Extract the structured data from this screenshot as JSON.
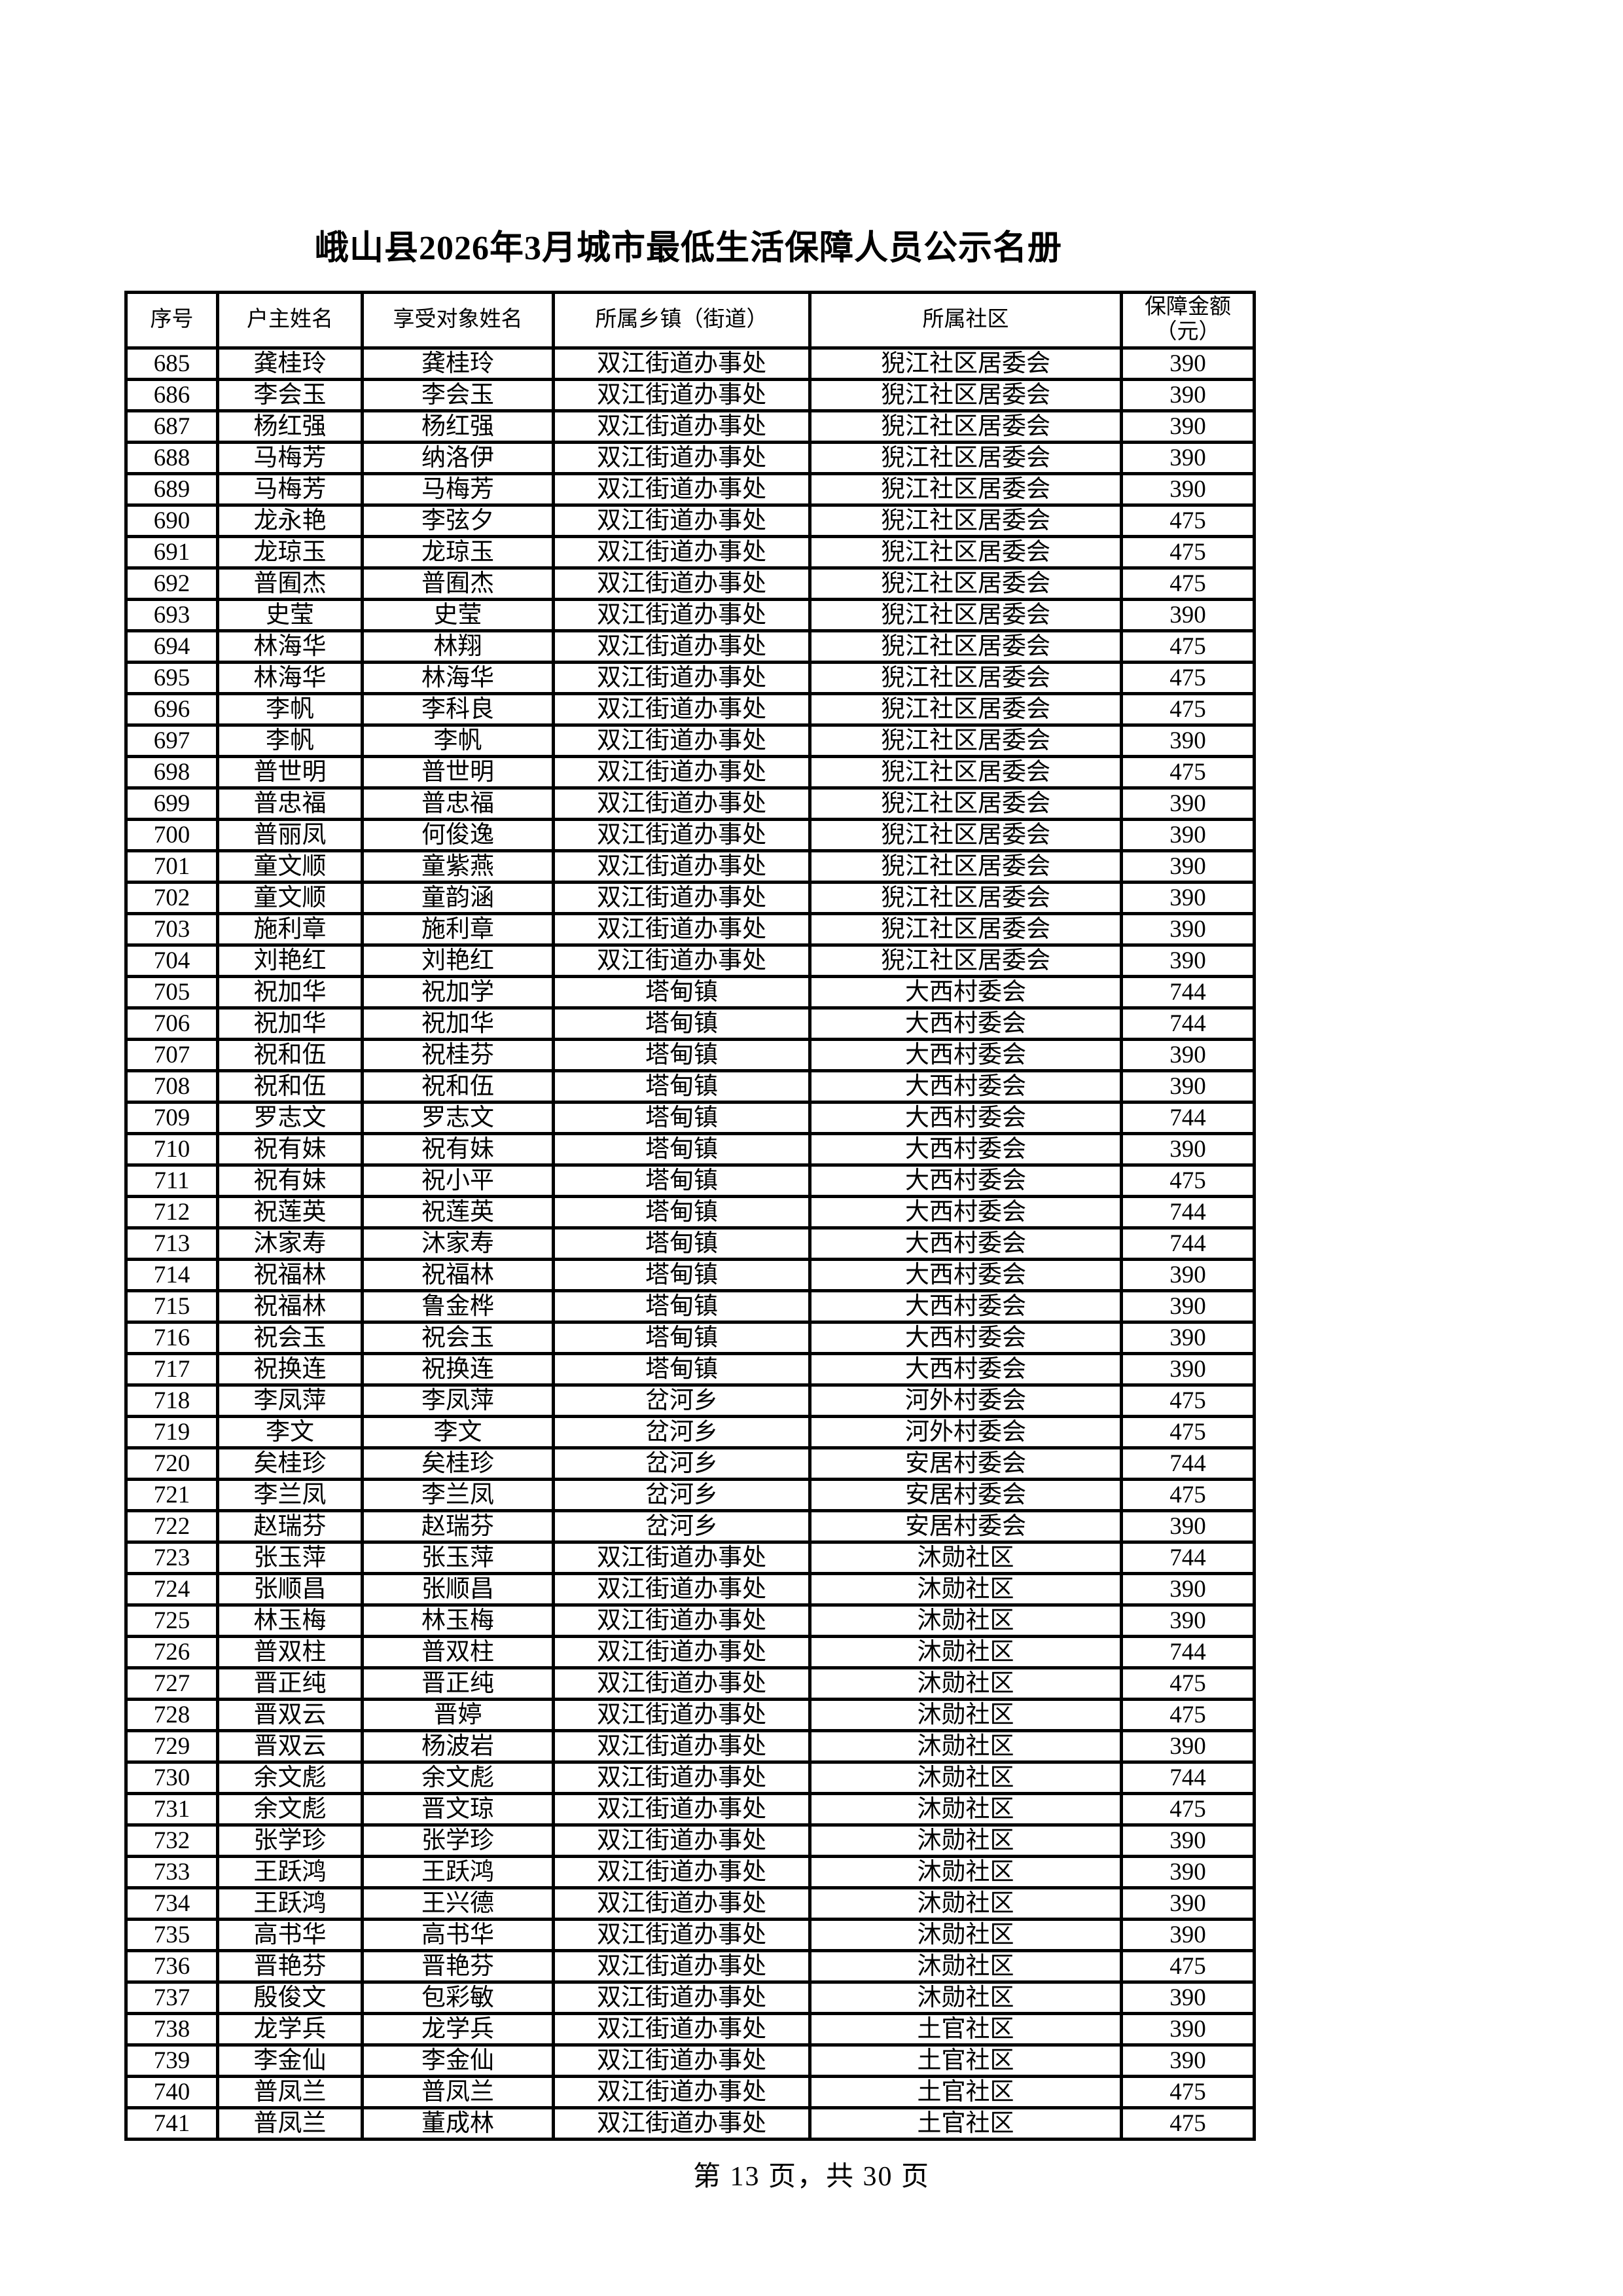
{
  "page": {
    "title": "峨山县2026年3月城市最低生活保障人员公示名册",
    "footer": "第 13 页，共 30 页"
  },
  "table": {
    "headers": [
      "序号",
      "户主姓名",
      "享受对象姓名",
      "所属乡镇（街道）",
      "所属社区"
    ],
    "amount_header_line1": "保障金额",
    "amount_header_line2": "（元）",
    "rows": [
      [
        685,
        "龚桂玲",
        "龚桂玲",
        "双江街道办事处",
        "猊江社区居委会",
        390
      ],
      [
        686,
        "李会玉",
        "李会玉",
        "双江街道办事处",
        "猊江社区居委会",
        390
      ],
      [
        687,
        "杨红强",
        "杨红强",
        "双江街道办事处",
        "猊江社区居委会",
        390
      ],
      [
        688,
        "马梅芳",
        "纳洛伊",
        "双江街道办事处",
        "猊江社区居委会",
        390
      ],
      [
        689,
        "马梅芳",
        "马梅芳",
        "双江街道办事处",
        "猊江社区居委会",
        390
      ],
      [
        690,
        "龙永艳",
        "李弦夕",
        "双江街道办事处",
        "猊江社区居委会",
        475
      ],
      [
        691,
        "龙琼玉",
        "龙琼玉",
        "双江街道办事处",
        "猊江社区居委会",
        475
      ],
      [
        692,
        "普囿杰",
        "普囿杰",
        "双江街道办事处",
        "猊江社区居委会",
        475
      ],
      [
        693,
        "史莹",
        "史莹",
        "双江街道办事处",
        "猊江社区居委会",
        390
      ],
      [
        694,
        "林海华",
        "林翔",
        "双江街道办事处",
        "猊江社区居委会",
        475
      ],
      [
        695,
        "林海华",
        "林海华",
        "双江街道办事处",
        "猊江社区居委会",
        475
      ],
      [
        696,
        "李帆",
        "李科良",
        "双江街道办事处",
        "猊江社区居委会",
        475
      ],
      [
        697,
        "李帆",
        "李帆",
        "双江街道办事处",
        "猊江社区居委会",
        390
      ],
      [
        698,
        "普世明",
        "普世明",
        "双江街道办事处",
        "猊江社区居委会",
        475
      ],
      [
        699,
        "普忠福",
        "普忠福",
        "双江街道办事处",
        "猊江社区居委会",
        390
      ],
      [
        700,
        "普丽凤",
        "何俊逸",
        "双江街道办事处",
        "猊江社区居委会",
        390
      ],
      [
        701,
        "童文顺",
        "童紫燕",
        "双江街道办事处",
        "猊江社区居委会",
        390
      ],
      [
        702,
        "童文顺",
        "童韵涵",
        "双江街道办事处",
        "猊江社区居委会",
        390
      ],
      [
        703,
        "施利章",
        "施利章",
        "双江街道办事处",
        "猊江社区居委会",
        390
      ],
      [
        704,
        "刘艳红",
        "刘艳红",
        "双江街道办事处",
        "猊江社区居委会",
        390
      ],
      [
        705,
        "祝加华",
        "祝加学",
        "塔甸镇",
        "大西村委会",
        744
      ],
      [
        706,
        "祝加华",
        "祝加华",
        "塔甸镇",
        "大西村委会",
        744
      ],
      [
        707,
        "祝和伍",
        "祝桂芬",
        "塔甸镇",
        "大西村委会",
        390
      ],
      [
        708,
        "祝和伍",
        "祝和伍",
        "塔甸镇",
        "大西村委会",
        390
      ],
      [
        709,
        "罗志文",
        "罗志文",
        "塔甸镇",
        "大西村委会",
        744
      ],
      [
        710,
        "祝有妹",
        "祝有妹",
        "塔甸镇",
        "大西村委会",
        390
      ],
      [
        711,
        "祝有妹",
        "祝小平",
        "塔甸镇",
        "大西村委会",
        475
      ],
      [
        712,
        "祝莲英",
        "祝莲英",
        "塔甸镇",
        "大西村委会",
        744
      ],
      [
        713,
        "沐家寿",
        "沐家寿",
        "塔甸镇",
        "大西村委会",
        744
      ],
      [
        714,
        "祝福林",
        "祝福林",
        "塔甸镇",
        "大西村委会",
        390
      ],
      [
        715,
        "祝福林",
        "鲁金桦",
        "塔甸镇",
        "大西村委会",
        390
      ],
      [
        716,
        "祝会玉",
        "祝会玉",
        "塔甸镇",
        "大西村委会",
        390
      ],
      [
        717,
        "祝换连",
        "祝换连",
        "塔甸镇",
        "大西村委会",
        390
      ],
      [
        718,
        "李凤萍",
        "李凤萍",
        "岔河乡",
        "河外村委会",
        475
      ],
      [
        719,
        "李文",
        "李文",
        "岔河乡",
        "河外村委会",
        475
      ],
      [
        720,
        "矣桂珍",
        "矣桂珍",
        "岔河乡",
        "安居村委会",
        744
      ],
      [
        721,
        "李兰凤",
        "李兰凤",
        "岔河乡",
        "安居村委会",
        475
      ],
      [
        722,
        "赵瑞芬",
        "赵瑞芬",
        "岔河乡",
        "安居村委会",
        390
      ],
      [
        723,
        "张玉萍",
        "张玉萍",
        "双江街道办事处",
        "沐勋社区",
        744
      ],
      [
        724,
        "张顺昌",
        "张顺昌",
        "双江街道办事处",
        "沐勋社区",
        390
      ],
      [
        725,
        "林玉梅",
        "林玉梅",
        "双江街道办事处",
        "沐勋社区",
        390
      ],
      [
        726,
        "普双柱",
        "普双柱",
        "双江街道办事处",
        "沐勋社区",
        744
      ],
      [
        727,
        "晋正纯",
        "晋正纯",
        "双江街道办事处",
        "沐勋社区",
        475
      ],
      [
        728,
        "晋双云",
        "晋婷",
        "双江街道办事处",
        "沐勋社区",
        475
      ],
      [
        729,
        "晋双云",
        "杨波岩",
        "双江街道办事处",
        "沐勋社区",
        390
      ],
      [
        730,
        "余文彪",
        "余文彪",
        "双江街道办事处",
        "沐勋社区",
        744
      ],
      [
        731,
        "余文彪",
        "晋文琼",
        "双江街道办事处",
        "沐勋社区",
        475
      ],
      [
        732,
        "张学珍",
        "张学珍",
        "双江街道办事处",
        "沐勋社区",
        390
      ],
      [
        733,
        "王跃鸿",
        "王跃鸿",
        "双江街道办事处",
        "沐勋社区",
        390
      ],
      [
        734,
        "王跃鸿",
        "王兴德",
        "双江街道办事处",
        "沐勋社区",
        390
      ],
      [
        735,
        "高书华",
        "高书华",
        "双江街道办事处",
        "沐勋社区",
        390
      ],
      [
        736,
        "晋艳芬",
        "晋艳芬",
        "双江街道办事处",
        "沐勋社区",
        475
      ],
      [
        737,
        "殷俊文",
        "包彩敏",
        "双江街道办事处",
        "沐勋社区",
        390
      ],
      [
        738,
        "龙学兵",
        "龙学兵",
        "双江街道办事处",
        "土官社区",
        390
      ],
      [
        739,
        "李金仙",
        "李金仙",
        "双江街道办事处",
        "土官社区",
        390
      ],
      [
        740,
        "普凤兰",
        "普凤兰",
        "双江街道办事处",
        "土官社区",
        475
      ],
      [
        741,
        "普凤兰",
        "董成林",
        "双江街道办事处",
        "土官社区",
        475
      ]
    ]
  }
}
